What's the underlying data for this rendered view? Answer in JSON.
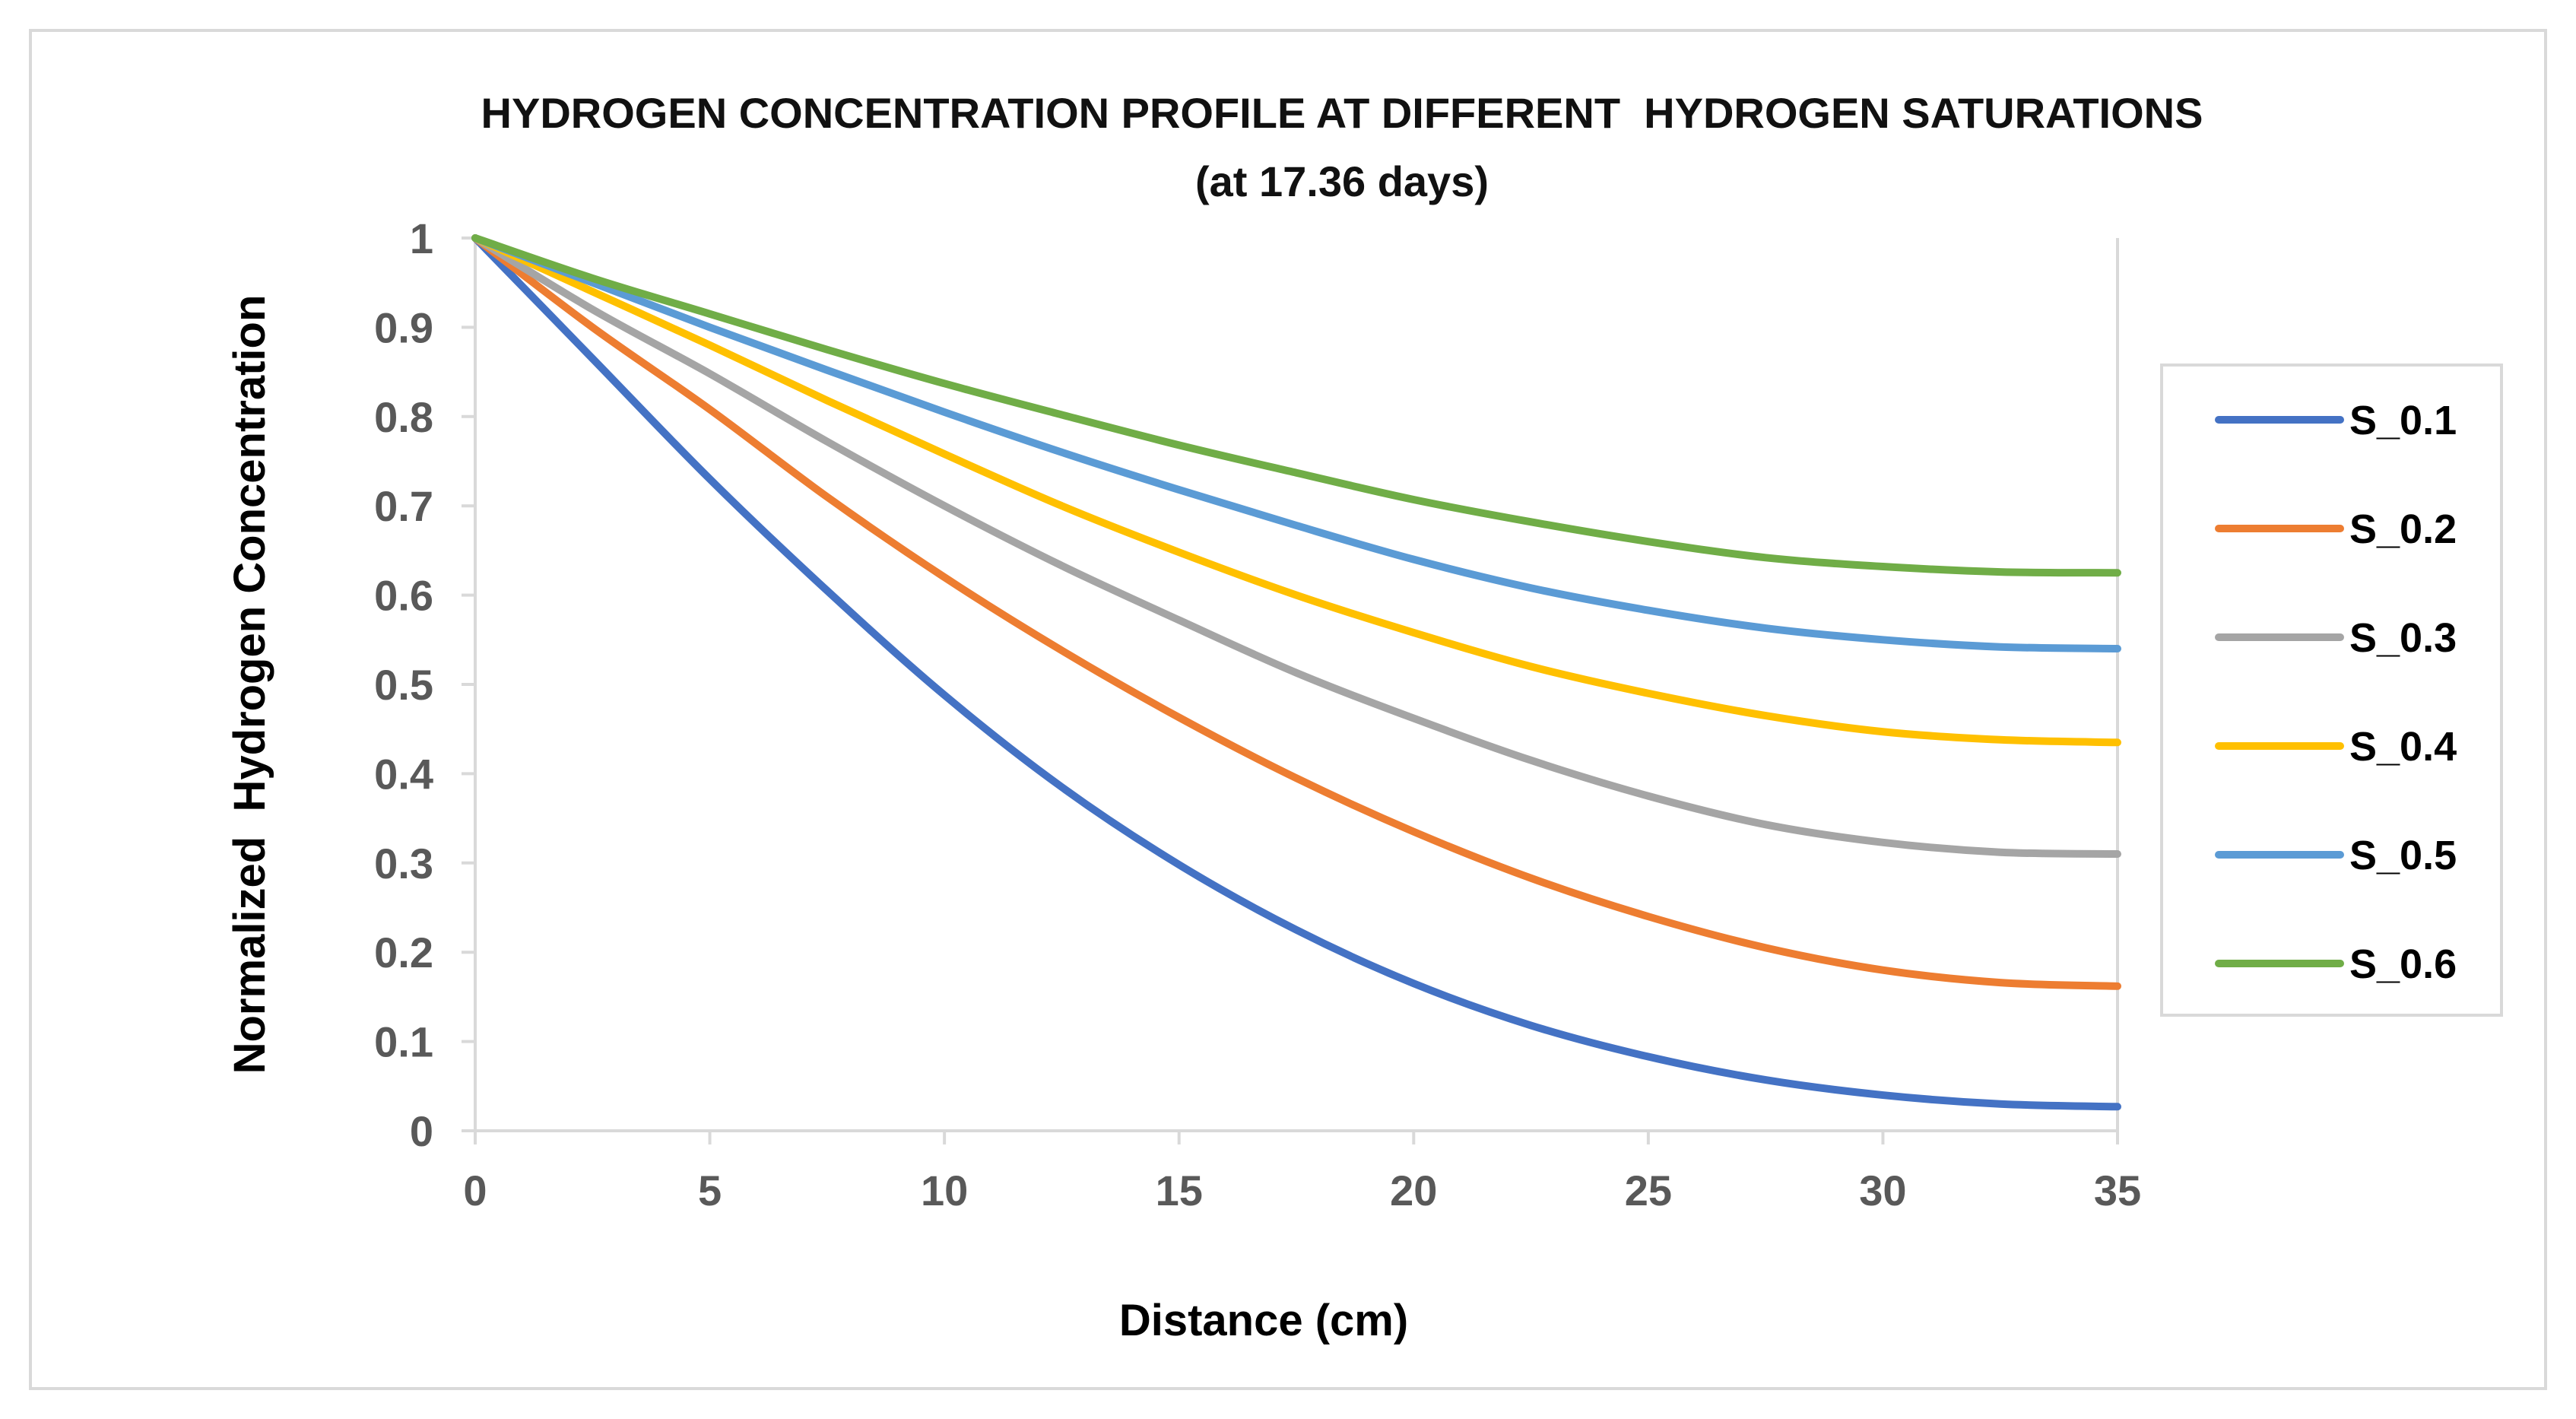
{
  "chart_data": {
    "type": "line",
    "title": "HYDROGEN CONCENTRATION PROFILE AT DIFFERENT  HYDROGEN SATURATIONS",
    "subtitle": "(at 17.36 days)",
    "xlabel": "Distance (cm)",
    "ylabel": "Normalized  Hydrogen Concentration",
    "xlim": [
      0,
      35
    ],
    "ylim": [
      0,
      1
    ],
    "x_ticks": [
      "0",
      "5",
      "10",
      "15",
      "20",
      "25",
      "30",
      "35"
    ],
    "y_ticks": [
      "0",
      "0.1",
      "0.2",
      "0.3",
      "0.4",
      "0.5",
      "0.6",
      "0.7",
      "0.8",
      "0.9",
      "1"
    ],
    "grid": false,
    "legend_position": "right",
    "x": [
      0,
      2.5,
      5,
      7.5,
      10,
      12.5,
      15,
      17.5,
      20,
      22.5,
      25,
      27.5,
      30,
      32.5,
      35
    ],
    "series": [
      {
        "name": "S_0.1",
        "color": "#4472C4",
        "values": [
          1.0,
          0.865,
          0.73,
          0.605,
          0.488,
          0.385,
          0.298,
          0.225,
          0.165,
          0.118,
          0.083,
          0.057,
          0.04,
          0.03,
          0.027
        ]
      },
      {
        "name": "S_0.2",
        "color": "#ED7D31",
        "values": [
          1.0,
          0.9,
          0.808,
          0.71,
          0.62,
          0.538,
          0.463,
          0.395,
          0.335,
          0.283,
          0.24,
          0.205,
          0.18,
          0.166,
          0.162
        ]
      },
      {
        "name": "S_0.3",
        "color": "#A5A5A5",
        "values": [
          1.0,
          0.92,
          0.848,
          0.772,
          0.7,
          0.633,
          0.572,
          0.513,
          0.462,
          0.415,
          0.375,
          0.343,
          0.323,
          0.312,
          0.31
        ]
      },
      {
        "name": "S_0.4",
        "color": "#FFC000",
        "values": [
          1.0,
          0.94,
          0.88,
          0.818,
          0.758,
          0.7,
          0.648,
          0.6,
          0.558,
          0.52,
          0.49,
          0.465,
          0.447,
          0.438,
          0.435
        ]
      },
      {
        "name": "S_0.5",
        "color": "#5B9BD5",
        "values": [
          1.0,
          0.95,
          0.9,
          0.852,
          0.805,
          0.76,
          0.718,
          0.678,
          0.64,
          0.608,
          0.583,
          0.563,
          0.55,
          0.542,
          0.54
        ]
      },
      {
        "name": "S_0.6",
        "color": "#70AD47",
        "values": [
          1.0,
          0.955,
          0.915,
          0.875,
          0.837,
          0.802,
          0.768,
          0.737,
          0.707,
          0.682,
          0.66,
          0.642,
          0.632,
          0.626,
          0.625
        ]
      }
    ]
  }
}
